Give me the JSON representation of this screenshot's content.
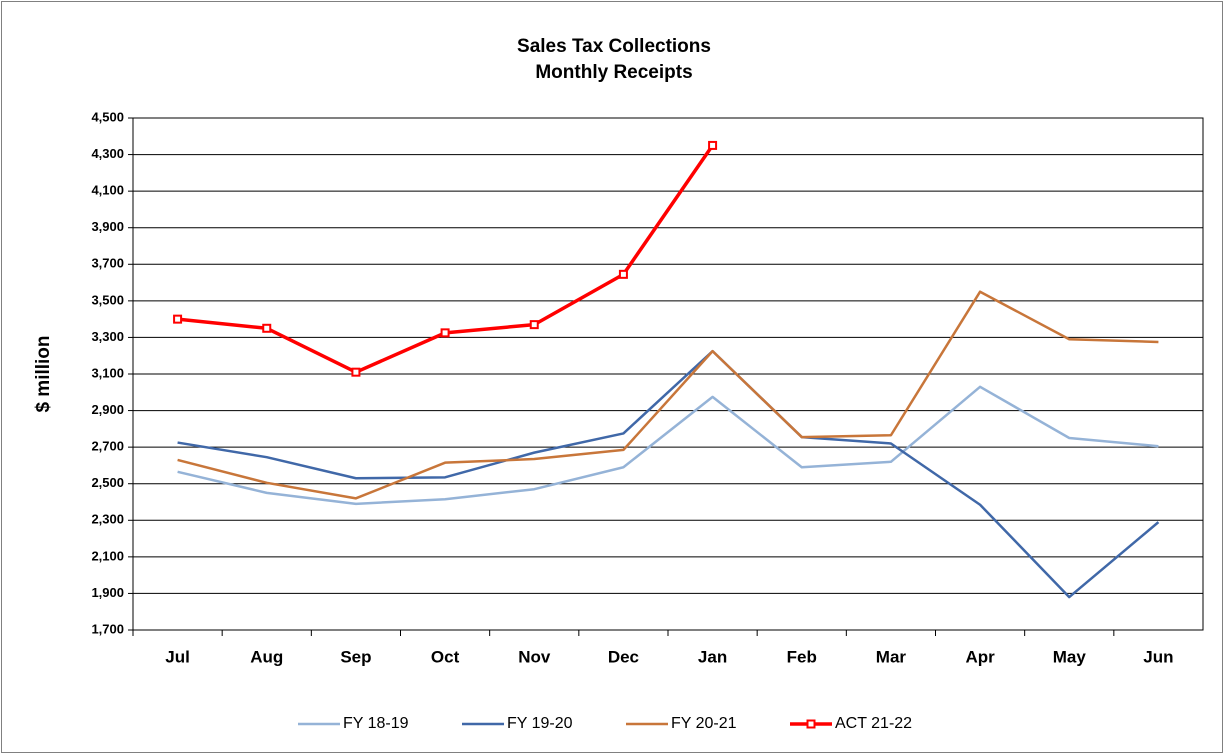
{
  "chart_data": {
    "type": "line",
    "title": "Sales Tax Collections",
    "subtitle": "Monthly Receipts",
    "y_label": "$ million",
    "categories": [
      "Jul",
      "Aug",
      "Sep",
      "Oct",
      "Nov",
      "Dec",
      "Jan",
      "Feb",
      "Mar",
      "Apr",
      "May",
      "Jun"
    ],
    "series": [
      {
        "name": "FY 18-19",
        "color": "#95b3d7",
        "values": [
          2565,
          2450,
          2390,
          2415,
          2470,
          2590,
          2975,
          2590,
          2620,
          3030,
          2750,
          2705
        ]
      },
      {
        "name": "FY 19-20",
        "color": "#4068a8",
        "values": [
          2725,
          2645,
          2530,
          2535,
          2670,
          2775,
          3225,
          2755,
          2720,
          2385,
          1880,
          2290
        ]
      },
      {
        "name": "FY 20-21",
        "color": "#c8763a",
        "values": [
          2630,
          2505,
          2420,
          2615,
          2635,
          2685,
          3225,
          2755,
          2765,
          3550,
          3290,
          3275
        ]
      },
      {
        "name": "ACT 21-22",
        "color": "#ff0000",
        "markers": true,
        "values": [
          3400,
          3350,
          3110,
          3325,
          3370,
          3645,
          4350,
          null,
          null,
          null,
          null,
          null
        ]
      }
    ],
    "ylim": [
      1700,
      4500
    ],
    "yticks": [
      {
        "value": 1700,
        "label": "1,700"
      },
      {
        "value": 1900,
        "label": "1,900"
      },
      {
        "value": 2100,
        "label": "2,100"
      },
      {
        "value": 2300,
        "label": "2,300"
      },
      {
        "value": 2500,
        "label": "2,500"
      },
      {
        "value": 2700,
        "label": "2,700"
      },
      {
        "value": 2900,
        "label": "2,900"
      },
      {
        "value": 3100,
        "label": "3,100"
      },
      {
        "value": 3300,
        "label": "3,300"
      },
      {
        "value": 3500,
        "label": "3,500"
      },
      {
        "value": 3700,
        "label": "3,700"
      },
      {
        "value": 3900,
        "label": "3,900"
      },
      {
        "value": 4100,
        "label": "4,100"
      },
      {
        "value": 4300,
        "label": "4,300"
      },
      {
        "value": 4500,
        "label": "4,500"
      }
    ],
    "grid": true,
    "legend": "bottom"
  }
}
